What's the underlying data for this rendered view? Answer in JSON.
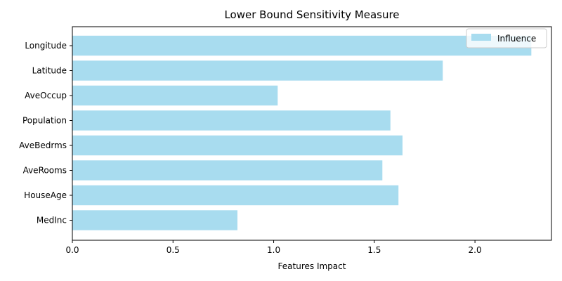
{
  "chart_data": {
    "type": "bar",
    "orientation": "horizontal",
    "title": "Lower Bound Sensitivity Measure",
    "xlabel": "Features Impact",
    "ylabel": "",
    "categories": [
      "MedInc",
      "HouseAge",
      "AveRooms",
      "AveBedrms",
      "Population",
      "AveOccup",
      "Latitude",
      "Longitude"
    ],
    "series": [
      {
        "name": "Influence",
        "values": [
          0.82,
          1.62,
          1.54,
          1.64,
          1.58,
          1.02,
          1.84,
          2.28
        ],
        "color": "#a8dcef"
      }
    ],
    "xlim": [
      0,
      2.38
    ],
    "xticks": [
      0.0,
      0.5,
      1.0,
      1.5,
      2.0
    ],
    "xtick_labels": [
      "0.0",
      "0.5",
      "1.0",
      "1.5",
      "2.0"
    ],
    "grid": false,
    "legend_position": "top-right"
  }
}
